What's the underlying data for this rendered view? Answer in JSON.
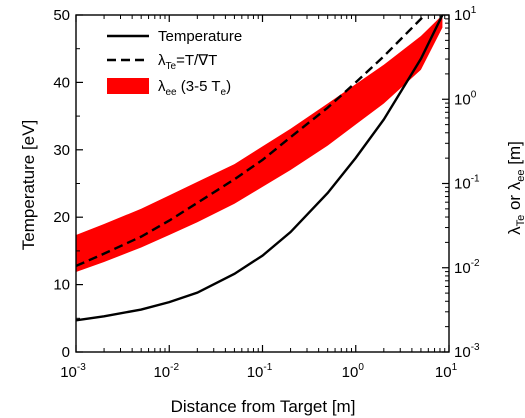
{
  "chart_data": {
    "type": "line",
    "xlabel": "Distance from Target [m]",
    "ylabel": "Temperature [eV]",
    "y2label": {
      "a": "λ",
      "a_sub": "Te",
      "b": " or λ",
      "b_sub": "ee",
      "c": " [m]"
    },
    "x_scale": "log",
    "xlim": [
      0.001,
      10
    ],
    "ylim": [
      0,
      50
    ],
    "y2_scale": "log",
    "y2lim": [
      0.001,
      10
    ],
    "x_ticks": [
      {
        "base": "10",
        "exp": "-3"
      },
      {
        "base": "10",
        "exp": "-2"
      },
      {
        "base": "10",
        "exp": "-1"
      },
      {
        "base": "10",
        "exp": "0"
      },
      {
        "base": "10",
        "exp": "1"
      }
    ],
    "y_ticks": [
      "0",
      "10",
      "20",
      "30",
      "40",
      "50"
    ],
    "y2_ticks": [
      {
        "base": "10",
        "exp": "-3"
      },
      {
        "base": "10",
        "exp": "-2"
      },
      {
        "base": "10",
        "exp": "-1"
      },
      {
        "base": "10",
        "exp": "0"
      },
      {
        "base": "10",
        "exp": "1"
      }
    ],
    "legend": {
      "placement": "top-left",
      "entries": [
        {
          "style": "solid",
          "label": "Temperature"
        },
        {
          "style": "dashed",
          "label_main": "λ",
          "label_sub": "Te",
          "label_rest": "=T/∇T"
        },
        {
          "style": "band",
          "label_main": "λ",
          "label_sub": "ee",
          "label_rest": " (3-5 T",
          "label_sub2": "e",
          "label_end": ")"
        }
      ]
    },
    "series": [
      {
        "style": "solid",
        "axis": "left",
        "color": "#000000",
        "x": [
          0.001,
          0.002,
          0.005,
          0.01,
          0.02,
          0.05,
          0.1,
          0.2,
          0.5,
          1,
          2,
          5,
          8.5
        ],
        "y": [
          4.7,
          5.3,
          6.3,
          7.4,
          8.8,
          11.6,
          14.3,
          17.8,
          23.6,
          28.8,
          34.5,
          43.5,
          50
        ]
      },
      {
        "style": "dashed",
        "axis": "right",
        "color": "#000000",
        "x": [
          0.001,
          0.002,
          0.005,
          0.01,
          0.02,
          0.05,
          0.1,
          0.2,
          0.5,
          1,
          2,
          5.5
        ],
        "y": [
          0.0105,
          0.0147,
          0.0234,
          0.0363,
          0.0589,
          0.1122,
          0.1905,
          0.3548,
          0.7943,
          1.5849,
          3.2359,
          10
        ]
      },
      {
        "style": "band",
        "axis": "right",
        "color": "#ff0000",
        "x": [
          0.001,
          0.002,
          0.005,
          0.01,
          0.02,
          0.05,
          0.1,
          0.2,
          0.5,
          1,
          2,
          5,
          8.5
        ],
        "upper": [
          0.0245,
          0.0331,
          0.0501,
          0.0724,
          0.1047,
          0.1698,
          0.2754,
          0.4467,
          0.8913,
          1.5136,
          2.5704,
          5.6234,
          10
        ],
        "lower": [
          0.0089,
          0.0117,
          0.0174,
          0.0245,
          0.0347,
          0.0575,
          0.0912,
          0.1445,
          0.2818,
          0.5012,
          0.8913,
          2.2387,
          7.0795
        ]
      }
    ]
  }
}
